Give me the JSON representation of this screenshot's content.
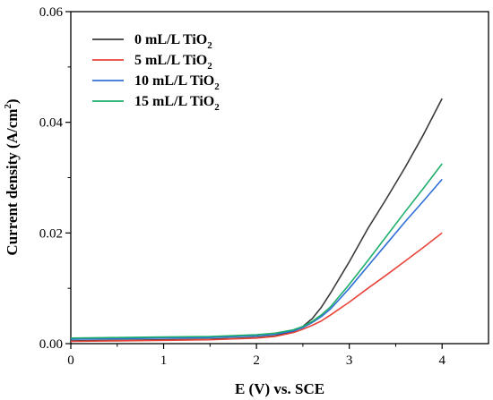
{
  "chart_data": {
    "type": "line",
    "xlabel": "E (V) vs. SCE",
    "ylabel": "Current density (A/cm",
    "ylabel_sup": "2",
    "ylabel_end": ")",
    "xlim": [
      0,
      4.5
    ],
    "ylim": [
      0,
      0.06
    ],
    "x_ticks": [
      0,
      1,
      2,
      3,
      4
    ],
    "x_tick_labels": [
      "0",
      "1",
      "2",
      "3",
      "4"
    ],
    "y_ticks": [
      0,
      0.02,
      0.04,
      0.06
    ],
    "y_tick_labels": [
      "0.00",
      "0.02",
      "0.04",
      "0.06"
    ],
    "grid": false,
    "legend_position": "top-left",
    "series": [
      {
        "name": "0 mL/L TiO",
        "name_sub": "2",
        "color": "#3a3a3a",
        "x": [
          0,
          0.5,
          1.0,
          1.5,
          2.0,
          2.2,
          2.4,
          2.5,
          2.6,
          2.7,
          2.8,
          3.0,
          3.2,
          3.4,
          3.6,
          3.8,
          4.0
        ],
        "y": [
          0.0005,
          0.0006,
          0.0007,
          0.0008,
          0.0011,
          0.0014,
          0.0022,
          0.0031,
          0.0045,
          0.0066,
          0.0092,
          0.0148,
          0.0208,
          0.0262,
          0.0318,
          0.0378,
          0.0443
        ]
      },
      {
        "name": "5 mL/L TiO",
        "name_sub": "2",
        "color": "#e8443a",
        "x": [
          0,
          0.5,
          1.0,
          1.5,
          2.0,
          2.2,
          2.4,
          2.5,
          2.6,
          2.7,
          2.8,
          3.0,
          3.2,
          3.4,
          3.6,
          3.8,
          4.0
        ],
        "y": [
          0.0004,
          0.0005,
          0.0006,
          0.0007,
          0.001,
          0.0013,
          0.002,
          0.0026,
          0.0033,
          0.0041,
          0.0052,
          0.0075,
          0.01,
          0.0124,
          0.0149,
          0.0174,
          0.02
        ]
      },
      {
        "name": "10 mL/L TiO",
        "name_sub": "2",
        "color": "#2f6fd6",
        "x": [
          0,
          0.5,
          1.0,
          1.5,
          2.0,
          2.2,
          2.4,
          2.5,
          2.6,
          2.7,
          2.8,
          3.0,
          3.2,
          3.4,
          3.6,
          3.8,
          4.0
        ],
        "y": [
          0.0008,
          0.0009,
          0.001,
          0.0011,
          0.0014,
          0.0017,
          0.0023,
          0.0029,
          0.0038,
          0.0049,
          0.0063,
          0.01,
          0.014,
          0.018,
          0.022,
          0.0258,
          0.0297
        ]
      },
      {
        "name": "15 mL/L TiO",
        "name_sub": "2",
        "color": "#1fae6b",
        "x": [
          0,
          0.5,
          1.0,
          1.5,
          2.0,
          2.2,
          2.4,
          2.5,
          2.6,
          2.7,
          2.8,
          3.0,
          3.2,
          3.4,
          3.6,
          3.8,
          4.0
        ],
        "y": [
          0.001,
          0.0011,
          0.0012,
          0.0013,
          0.0016,
          0.0019,
          0.0025,
          0.0031,
          0.004,
          0.0052,
          0.0067,
          0.0107,
          0.015,
          0.0194,
          0.0238,
          0.0281,
          0.0325
        ]
      }
    ]
  }
}
